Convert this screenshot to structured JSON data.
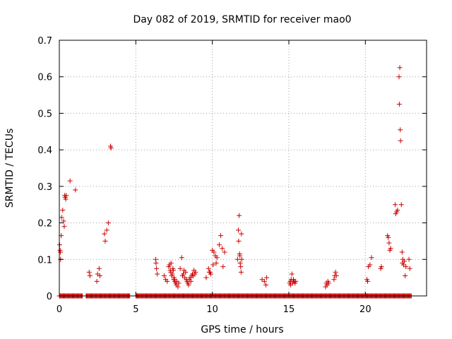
{
  "chart_data": {
    "type": "scatter",
    "title": "Day 082 of 2019, SRMTID for receiver mao0",
    "xlabel": "GPS time / hours",
    "ylabel": "SRMTID / TECUs",
    "xlim": [
      0,
      24
    ],
    "ylim": [
      0,
      0.7
    ],
    "xticks": [
      0,
      5,
      10,
      15,
      20
    ],
    "yticks": [
      0,
      0.1,
      0.2,
      0.3,
      0.4,
      0.5,
      0.6,
      0.7
    ],
    "ytick_labels": [
      "0",
      "0.1",
      "0.2",
      "0.3",
      "0.4",
      "0.5",
      "0.6",
      "0.7"
    ],
    "grid": true,
    "marker": "+",
    "color": "#cc0000",
    "series": [
      {
        "points": [
          [
            0.02,
            0.14
          ],
          [
            0.05,
            0.125
          ],
          [
            0.07,
            0.12
          ],
          [
            0.08,
            0.1
          ],
          [
            0.12,
            0.165
          ],
          [
            0.15,
            0.215
          ],
          [
            0.22,
            0.235
          ],
          [
            0.28,
            0.205
          ],
          [
            0.32,
            0.19
          ],
          [
            0.35,
            0.275
          ],
          [
            0.38,
            0.27
          ],
          [
            0.42,
            0.265
          ],
          [
            0.45,
            0.275
          ],
          [
            0.7,
            0.315
          ],
          [
            1.05,
            0.29
          ],
          [
            1.95,
            0.065
          ],
          [
            2.0,
            0.055
          ],
          [
            2.45,
            0.04
          ],
          [
            2.5,
            0.06
          ],
          [
            2.6,
            0.075
          ],
          [
            2.65,
            0.055
          ],
          [
            2.95,
            0.17
          ],
          [
            3.0,
            0.15
          ],
          [
            3.1,
            0.18
          ],
          [
            3.2,
            0.2
          ],
          [
            3.35,
            0.41
          ],
          [
            3.38,
            0.405
          ],
          [
            6.3,
            0.1
          ],
          [
            6.32,
            0.09
          ],
          [
            6.35,
            0.075
          ],
          [
            6.4,
            0.06
          ],
          [
            6.85,
            0.055
          ],
          [
            6.95,
            0.045
          ],
          [
            7.05,
            0.04
          ],
          [
            7.15,
            0.08
          ],
          [
            7.2,
            0.085
          ],
          [
            7.25,
            0.07
          ],
          [
            7.28,
            0.065
          ],
          [
            7.3,
            0.09
          ],
          [
            7.35,
            0.055
          ],
          [
            7.38,
            0.06
          ],
          [
            7.42,
            0.075
          ],
          [
            7.45,
            0.07
          ],
          [
            7.48,
            0.045
          ],
          [
            7.5,
            0.05
          ],
          [
            7.52,
            0.045
          ],
          [
            7.55,
            0.04
          ],
          [
            7.6,
            0.035
          ],
          [
            7.65,
            0.03
          ],
          [
            7.68,
            0.04
          ],
          [
            7.75,
            0.025
          ],
          [
            7.8,
            0.035
          ],
          [
            7.9,
            0.075
          ],
          [
            8.0,
            0.105
          ],
          [
            8.05,
            0.055
          ],
          [
            8.1,
            0.06
          ],
          [
            8.15,
            0.07
          ],
          [
            8.2,
            0.05
          ],
          [
            8.25,
            0.065
          ],
          [
            8.3,
            0.045
          ],
          [
            8.35,
            0.04
          ],
          [
            8.4,
            0.035
          ],
          [
            8.45,
            0.03
          ],
          [
            8.5,
            0.045
          ],
          [
            8.55,
            0.05
          ],
          [
            8.6,
            0.04
          ],
          [
            8.65,
            0.055
          ],
          [
            8.7,
            0.06
          ],
          [
            8.75,
            0.055
          ],
          [
            8.8,
            0.07
          ],
          [
            8.85,
            0.06
          ],
          [
            8.9,
            0.065
          ],
          [
            9.6,
            0.05
          ],
          [
            9.75,
            0.075
          ],
          [
            9.8,
            0.065
          ],
          [
            9.85,
            0.065
          ],
          [
            9.9,
            0.06
          ],
          [
            10.0,
            0.125
          ],
          [
            10.05,
            0.085
          ],
          [
            10.1,
            0.12
          ],
          [
            10.2,
            0.11
          ],
          [
            10.25,
            0.09
          ],
          [
            10.3,
            0.105
          ],
          [
            10.45,
            0.14
          ],
          [
            10.55,
            0.165
          ],
          [
            10.65,
            0.13
          ],
          [
            10.7,
            0.08
          ],
          [
            10.8,
            0.12
          ],
          [
            11.65,
            0.1
          ],
          [
            11.7,
            0.18
          ],
          [
            11.72,
            0.15
          ],
          [
            11.75,
            0.22
          ],
          [
            11.78,
            0.115
          ],
          [
            11.8,
            0.11
          ],
          [
            11.82,
            0.09
          ],
          [
            11.85,
            0.08
          ],
          [
            11.88,
            0.065
          ],
          [
            11.9,
            0.17
          ],
          [
            11.92,
            0.1
          ],
          [
            13.25,
            0.045
          ],
          [
            13.4,
            0.04
          ],
          [
            13.5,
            0.03
          ],
          [
            13.55,
            0.05
          ],
          [
            15.05,
            0.035
          ],
          [
            15.1,
            0.04
          ],
          [
            15.12,
            0.03
          ],
          [
            15.15,
            0.045
          ],
          [
            15.2,
            0.06
          ],
          [
            15.25,
            0.035
          ],
          [
            15.28,
            0.04
          ],
          [
            15.3,
            0.045
          ],
          [
            15.35,
            0.04
          ],
          [
            15.4,
            0.035
          ],
          [
            15.45,
            0.04
          ],
          [
            17.4,
            0.025
          ],
          [
            17.45,
            0.035
          ],
          [
            17.5,
            0.03
          ],
          [
            17.55,
            0.04
          ],
          [
            17.6,
            0.035
          ],
          [
            17.95,
            0.045
          ],
          [
            18.0,
            0.055
          ],
          [
            18.05,
            0.065
          ],
          [
            18.1,
            0.055
          ],
          [
            20.1,
            0.045
          ],
          [
            20.15,
            0.04
          ],
          [
            20.2,
            0.08
          ],
          [
            20.3,
            0.085
          ],
          [
            20.4,
            0.105
          ],
          [
            21.0,
            0.075
          ],
          [
            21.05,
            0.08
          ],
          [
            21.45,
            0.165
          ],
          [
            21.5,
            0.16
          ],
          [
            21.55,
            0.145
          ],
          [
            21.6,
            0.125
          ],
          [
            21.65,
            0.13
          ],
          [
            21.95,
            0.25
          ],
          [
            21.98,
            0.225
          ],
          [
            22.05,
            0.23
          ],
          [
            22.1,
            0.235
          ],
          [
            22.2,
            0.6
          ],
          [
            22.22,
            0.525
          ],
          [
            22.25,
            0.625
          ],
          [
            22.28,
            0.455
          ],
          [
            22.3,
            0.425
          ],
          [
            22.35,
            0.25
          ],
          [
            22.4,
            0.12
          ],
          [
            22.42,
            0.09
          ],
          [
            22.45,
            0.1
          ],
          [
            22.5,
            0.085
          ],
          [
            22.55,
            0.095
          ],
          [
            22.6,
            0.055
          ],
          [
            22.65,
            0.08
          ],
          [
            22.85,
            0.1
          ],
          [
            22.9,
            0.075
          ]
        ],
        "zero_baseline_ranges": [
          [
            0.0,
            1.5
          ],
          [
            1.75,
            4.6
          ],
          [
            5.0,
            23.0
          ]
        ]
      }
    ]
  }
}
